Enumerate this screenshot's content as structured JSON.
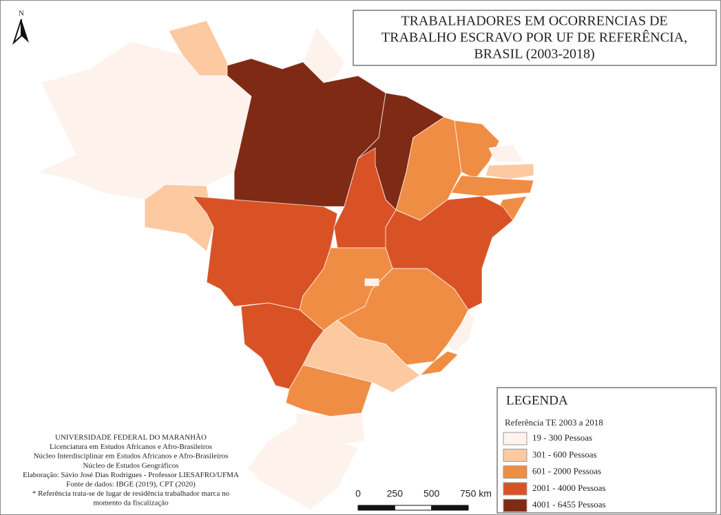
{
  "north": "N",
  "title": [
    "TRABALHADORES EM OCORRENCIAS DE",
    "TRABALHO ESCRAVO POR UF DE REFERÊNCIA,",
    "BRASIL (2003-2018)"
  ],
  "legend": {
    "title": "LEGENDA",
    "subtitle": "Referência TE 2003 a 2018",
    "classes": [
      {
        "label": "19 - 300  Pessoas",
        "color": "#fdf2ec"
      },
      {
        "label": "301 - 600  Pessoas",
        "color": "#fcc9a1"
      },
      {
        "label": "601 - 2000  Pessoas",
        "color": "#f08d44"
      },
      {
        "label": "2001 - 4000  Pessoas",
        "color": "#d95226"
      },
      {
        "label": "4001 - 6455  Pessoas",
        "color": "#7f2a15"
      }
    ]
  },
  "credits": [
    "UNIVERSIDADE FEDERAL DO MARANHÃO",
    "Licenciatura em Estudos Africanos e Afro-Brasileiros",
    "Núcleo Interdisciplinar em Estudos Africanos e Afro-Brasileiros",
    "Núcleo de Estudos Geográficos",
    "Elaboração: Sávio José Dias Rodrigues - Professor LIESAFRO/UFMA",
    "Fonte de dados: IBGE (2019), CPT (2020)",
    "* Referência trata-se de lugar de residência trabalhador marca no",
    "momento da fiscalização"
  ],
  "scale": {
    "ticks": [
      0,
      250,
      500,
      {
        "value": 750,
        "label": "750 km"
      }
    ]
  }
}
